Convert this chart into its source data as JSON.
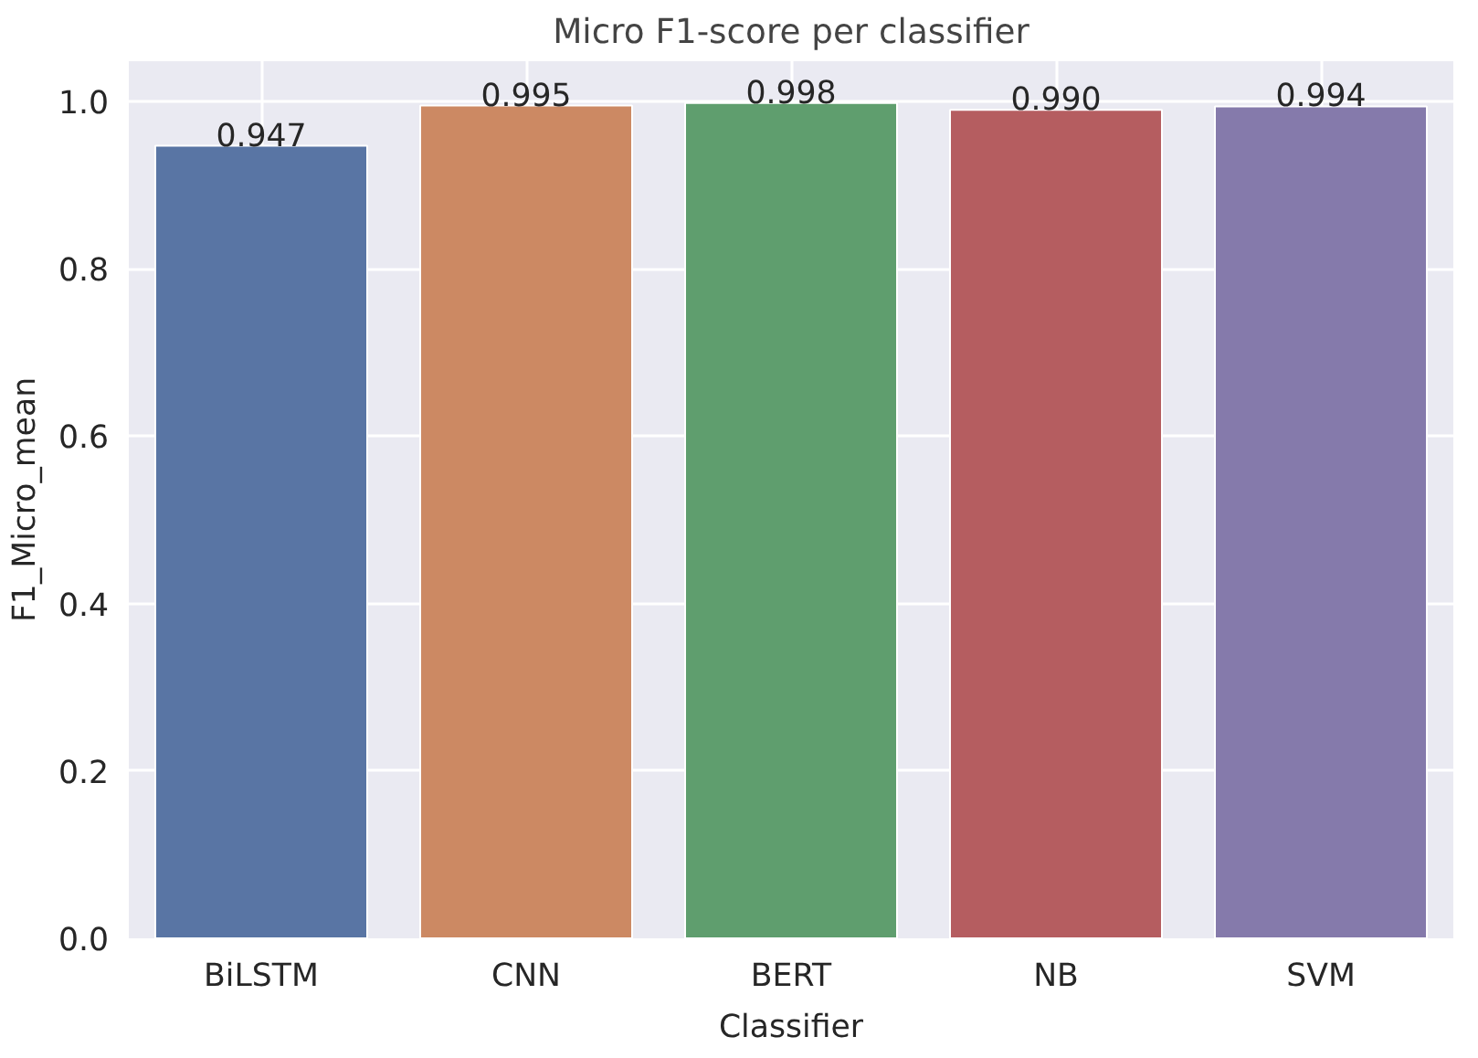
{
  "chart_data": {
    "type": "bar",
    "title": "Micro F1-score per classifier",
    "xlabel": "Classifier",
    "ylabel": "F1_Micro_mean",
    "categories": [
      "BiLSTM",
      "CNN",
      "BERT",
      "NB",
      "SVM"
    ],
    "values": [
      0.947,
      0.995,
      0.998,
      0.99,
      0.994
    ],
    "colors": [
      "#5975a4",
      "#cc8963",
      "#5f9e6e",
      "#b55d60",
      "#857aab"
    ],
    "ylim": [
      0,
      1.048
    ],
    "yticks": [
      {
        "value": 0,
        "label": "0.0"
      },
      {
        "value": 0.2,
        "label": "0.2"
      },
      {
        "value": 0.4,
        "label": "0.4"
      },
      {
        "value": 0.6,
        "label": "0.6"
      },
      {
        "value": 0.8,
        "label": "0.8"
      },
      {
        "value": 1,
        "label": "1.0"
      }
    ],
    "value_labels": [
      "0.947",
      "0.995",
      "0.998",
      "0.990",
      "0.994"
    ],
    "grid": true
  }
}
